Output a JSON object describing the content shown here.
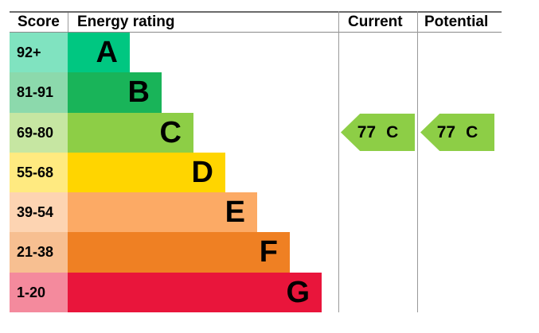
{
  "header": {
    "score": "Score",
    "energy_rating": "Energy rating",
    "current": "Current",
    "potential": "Potential"
  },
  "bands": [
    {
      "letter": "A",
      "score": "92+",
      "color": "#00c781",
      "score_tint": "#80e3c0"
    },
    {
      "letter": "B",
      "score": "81-91",
      "color": "#19b459",
      "score_tint": "#8cd9ac"
    },
    {
      "letter": "C",
      "score": "69-80",
      "color": "#8dce46",
      "score_tint": "#c6e6a2"
    },
    {
      "letter": "D",
      "score": "55-68",
      "color": "#ffd500",
      "score_tint": "#ffea80"
    },
    {
      "letter": "E",
      "score": "39-54",
      "color": "#fcaa65",
      "score_tint": "#fdd4b2"
    },
    {
      "letter": "F",
      "score": "21-38",
      "color": "#ef8023",
      "score_tint": "#f7bf91"
    },
    {
      "letter": "G",
      "score": "1-20",
      "color": "#e9153b",
      "score_tint": "#f48a9d"
    }
  ],
  "current": {
    "value": "77",
    "letter": "C",
    "color": "#8dce46"
  },
  "potential": {
    "value": "77",
    "letter": "C",
    "color": "#8dce46"
  },
  "line_color": "#9a9a9a",
  "chart_data": {
    "type": "bar",
    "title": "Energy rating",
    "categories": [
      "A",
      "B",
      "C",
      "D",
      "E",
      "F",
      "G"
    ],
    "score_ranges": [
      "92+",
      "81-91",
      "69-80",
      "55-68",
      "39-54",
      "21-38",
      "1-20"
    ],
    "band_colors": [
      "#00c781",
      "#19b459",
      "#8dce46",
      "#ffd500",
      "#fcaa65",
      "#ef8023",
      "#e9153b"
    ],
    "columns": [
      "Score",
      "Energy rating",
      "Current",
      "Potential"
    ],
    "current": {
      "value": 77,
      "band": "C"
    },
    "potential": {
      "value": 77,
      "band": "C"
    },
    "legend_position": "none",
    "grid": false
  }
}
